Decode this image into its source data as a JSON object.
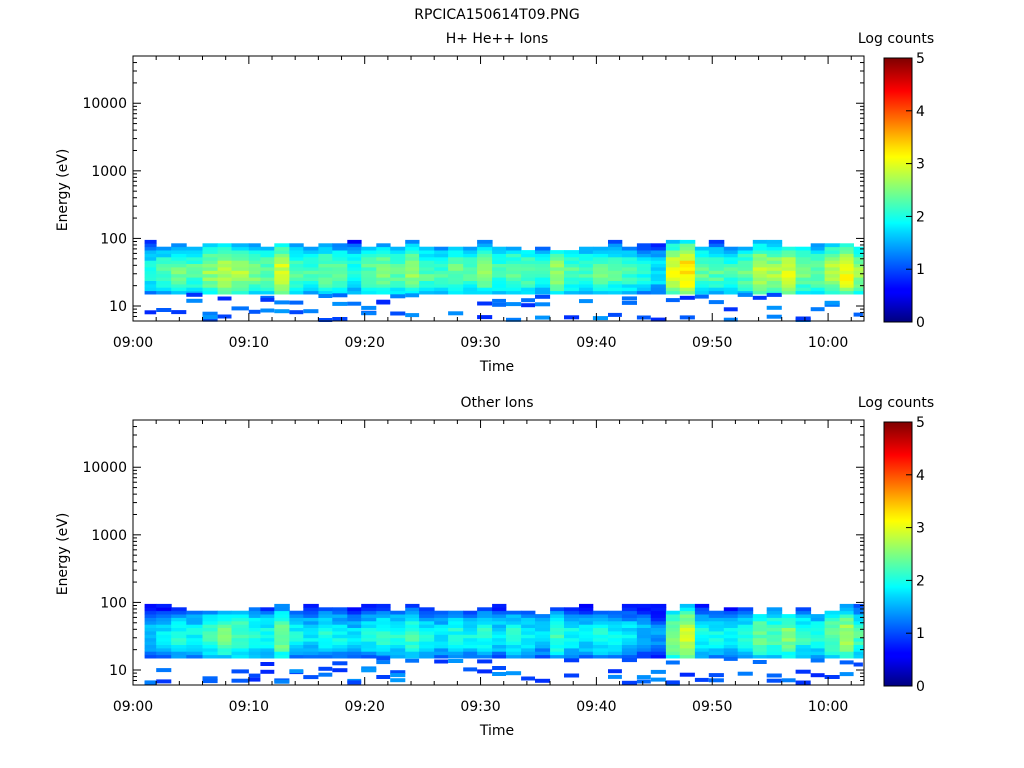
{
  "figure_title": "RPCICA150614T09.PNG",
  "chart_data": [
    {
      "type": "heatmap",
      "title": "H+ He++ Ions",
      "xlabel": "Time",
      "ylabel": "Energy (eV)",
      "x_range": [
        "09:00",
        "10:03"
      ],
      "x_ticks": [
        "09:00",
        "09:10",
        "09:20",
        "09:30",
        "09:40",
        "09:50",
        "10:00"
      ],
      "y_scale": "log",
      "ylim": [
        6,
        50000
      ],
      "y_ticks": [
        10,
        100,
        1000,
        10000
      ],
      "y_tick_labels": [
        "10",
        "100",
        "1000",
        "10000"
      ],
      "colorbar": {
        "label": "Log counts",
        "range": [
          0,
          5
        ],
        "ticks": [
          "0",
          "1",
          "2",
          "3",
          "4",
          "5"
        ],
        "colormap": "jet"
      },
      "time_bins_start_min": [
        1,
        2,
        3.3,
        4.6,
        6,
        7.3,
        8.5,
        10,
        11,
        12.2,
        13.5,
        14.7,
        16,
        17.2,
        18.5,
        19.7,
        21,
        22.2,
        23.5,
        24.7,
        26,
        27.2,
        28.5,
        29.7,
        31,
        32.2,
        33.5,
        34.7,
        36,
        37.2,
        38.5,
        39.7,
        41,
        42.2,
        43.5,
        44.7,
        46,
        47.2,
        48.5,
        49.7,
        51,
        52.2,
        53.5,
        54.7,
        56,
        57.2,
        58.5,
        59.7,
        61,
        62.2
      ],
      "peak_log_counts": [
        2.2,
        2.4,
        2.6,
        2.5,
        2.8,
        3.0,
        2.9,
        2.7,
        2.6,
        3.1,
        2.5,
        2.4,
        2.6,
        2.5,
        2.3,
        2.5,
        2.7,
        2.6,
        2.8,
        2.5,
        2.4,
        2.6,
        2.5,
        2.7,
        2.4,
        2.6,
        2.5,
        2.3,
        2.8,
        2.5,
        2.4,
        2.6,
        2.5,
        2.4,
        2.2,
        2.0,
        3.2,
        3.5,
        2.6,
        2.5,
        2.4,
        2.6,
        3.0,
        2.9,
        3.1,
        2.7,
        2.6,
        3.0,
        3.3,
        2.8
      ],
      "energy_band_eV": [
        15,
        95
      ]
    },
    {
      "type": "heatmap",
      "title": "Other Ions",
      "xlabel": "Time",
      "ylabel": "Energy (eV)",
      "x_range": [
        "09:00",
        "10:03"
      ],
      "x_ticks": [
        "09:00",
        "09:10",
        "09:20",
        "09:30",
        "09:40",
        "09:50",
        "10:00"
      ],
      "y_scale": "log",
      "ylim": [
        6,
        50000
      ],
      "y_ticks": [
        10,
        100,
        1000,
        10000
      ],
      "y_tick_labels": [
        "10",
        "100",
        "1000",
        "10000"
      ],
      "colorbar": {
        "label": "Log counts",
        "range": [
          0,
          5
        ],
        "ticks": [
          "0",
          "1",
          "2",
          "3",
          "4",
          "5"
        ],
        "colormap": "jet"
      },
      "time_bins_start_min": [
        1,
        2,
        3.3,
        4.6,
        6,
        7.3,
        8.5,
        10,
        11,
        12.2,
        13.5,
        14.7,
        16,
        17.2,
        18.5,
        19.7,
        21,
        22.2,
        23.5,
        24.7,
        26,
        27.2,
        28.5,
        29.7,
        31,
        32.2,
        33.5,
        34.7,
        36,
        37.2,
        38.5,
        39.7,
        41,
        42.2,
        43.5,
        44.7,
        46,
        47.2,
        48.5,
        49.7,
        51,
        52.2,
        53.5,
        54.7,
        56,
        57.2,
        58.5,
        59.7,
        61,
        62.2
      ],
      "peak_log_counts": [
        1.8,
        2.0,
        2.2,
        2.1,
        2.4,
        2.6,
        2.5,
        2.3,
        2.2,
        2.7,
        2.1,
        2.0,
        2.2,
        2.1,
        1.9,
        2.1,
        2.3,
        2.2,
        2.4,
        2.1,
        2.0,
        2.2,
        2.1,
        2.3,
        2.0,
        2.2,
        2.1,
        1.9,
        2.4,
        2.1,
        2.0,
        2.2,
        2.1,
        2.0,
        1.8,
        1.6,
        2.8,
        3.1,
        2.2,
        2.1,
        2.0,
        2.2,
        2.6,
        2.5,
        2.7,
        2.3,
        2.2,
        2.6,
        2.9,
        2.4
      ],
      "energy_band_eV": [
        15,
        95
      ]
    }
  ]
}
